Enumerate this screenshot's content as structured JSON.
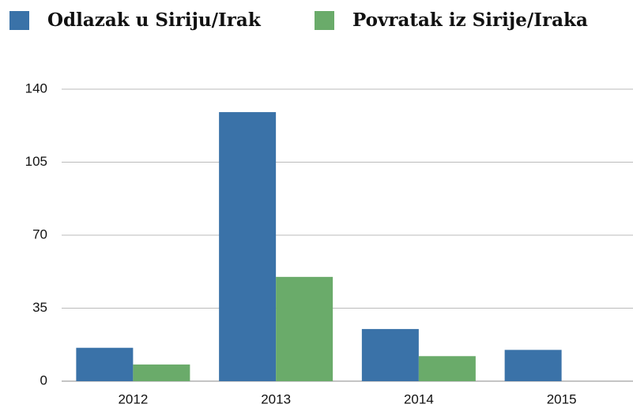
{
  "chart_data": {
    "type": "bar",
    "categories": [
      "2012",
      "2013",
      "2014",
      "2015"
    ],
    "series": [
      {
        "name": "Odlazak u Siriju/Irak",
        "color": "#3a72a8",
        "values": [
          16,
          129,
          25,
          15
        ]
      },
      {
        "name": "Povratak iz Sirije/Iraka",
        "color": "#6aab6a",
        "values": [
          8,
          50,
          12,
          0
        ]
      }
    ],
    "ylim": [
      0,
      140
    ],
    "yticks": [
      0,
      35,
      70,
      105,
      140
    ],
    "grid": true,
    "legend": "top"
  }
}
